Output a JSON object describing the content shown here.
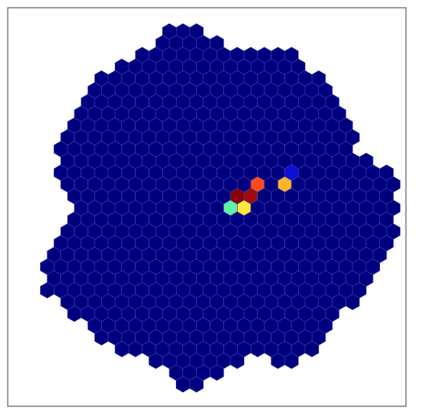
{
  "chart_data": {
    "type": "hexcamera",
    "color": "#00007f",
    "hit_colors": [
      "#5ef2a8",
      "#ffe83a",
      "#8b0000",
      "#a30a0a",
      "#ff4c1c",
      "#ffb42a",
      "#0c10d8"
    ]
  }
}
